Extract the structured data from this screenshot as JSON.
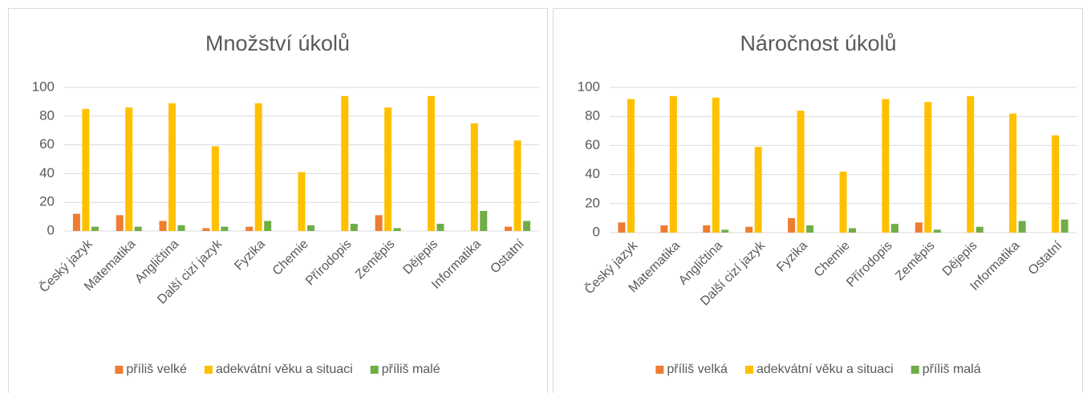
{
  "chart_data": [
    {
      "type": "bar",
      "title": "Množství úkolů",
      "categories": [
        "Český jazyk",
        "Matematika",
        "Angličtina",
        "Další cizí jazyk",
        "Fyzika",
        "Chemie",
        "Přírodopis",
        "Zeměpis",
        "Dějepis",
        "Informatika",
        "Ostatní"
      ],
      "series": [
        {
          "name": "příliš velké",
          "color": "#ed7d31",
          "values": [
            12,
            11,
            7,
            2,
            3,
            0,
            0,
            11,
            0,
            0,
            3
          ]
        },
        {
          "name": "adekvátní věku a situaci",
          "color": "#ffc000",
          "values": [
            85,
            86,
            89,
            59,
            89,
            41,
            94,
            86,
            94,
            75,
            63
          ]
        },
        {
          "name": "příliš malé",
          "color": "#70ad47",
          "values": [
            3,
            3,
            4,
            3,
            7,
            4,
            5,
            2,
            5,
            14,
            7
          ]
        }
      ],
      "ylim": [
        0,
        100
      ],
      "yticks": [
        0,
        20,
        40,
        60,
        80,
        100
      ],
      "grid": true,
      "legend": "bottom"
    },
    {
      "type": "bar",
      "title": "Náročnost úkolů",
      "categories": [
        "Český jazyk",
        "Matematika",
        "Angličtina",
        "Další cizí jazyk",
        "Fyzika",
        "Chemie",
        "Přírodopis",
        "Zeměpis",
        "Dějepis",
        "Informatika",
        "Ostatní"
      ],
      "series": [
        {
          "name": "příliš velká",
          "color": "#ed7d31",
          "values": [
            7,
            5,
            5,
            4,
            10,
            0,
            0,
            7,
            0,
            0,
            0
          ]
        },
        {
          "name": "adekvátní věku a situaci",
          "color": "#ffc000",
          "values": [
            92,
            94,
            93,
            59,
            84,
            42,
            92,
            90,
            94,
            82,
            67
          ]
        },
        {
          "name": "příliš malá",
          "color": "#70ad47",
          "values": [
            0,
            0,
            2,
            0,
            5,
            3,
            6,
            2,
            4,
            8,
            9
          ]
        }
      ],
      "ylim": [
        0,
        100
      ],
      "yticks": [
        0,
        20,
        40,
        60,
        80,
        100
      ],
      "grid": true,
      "legend": "bottom"
    }
  ]
}
